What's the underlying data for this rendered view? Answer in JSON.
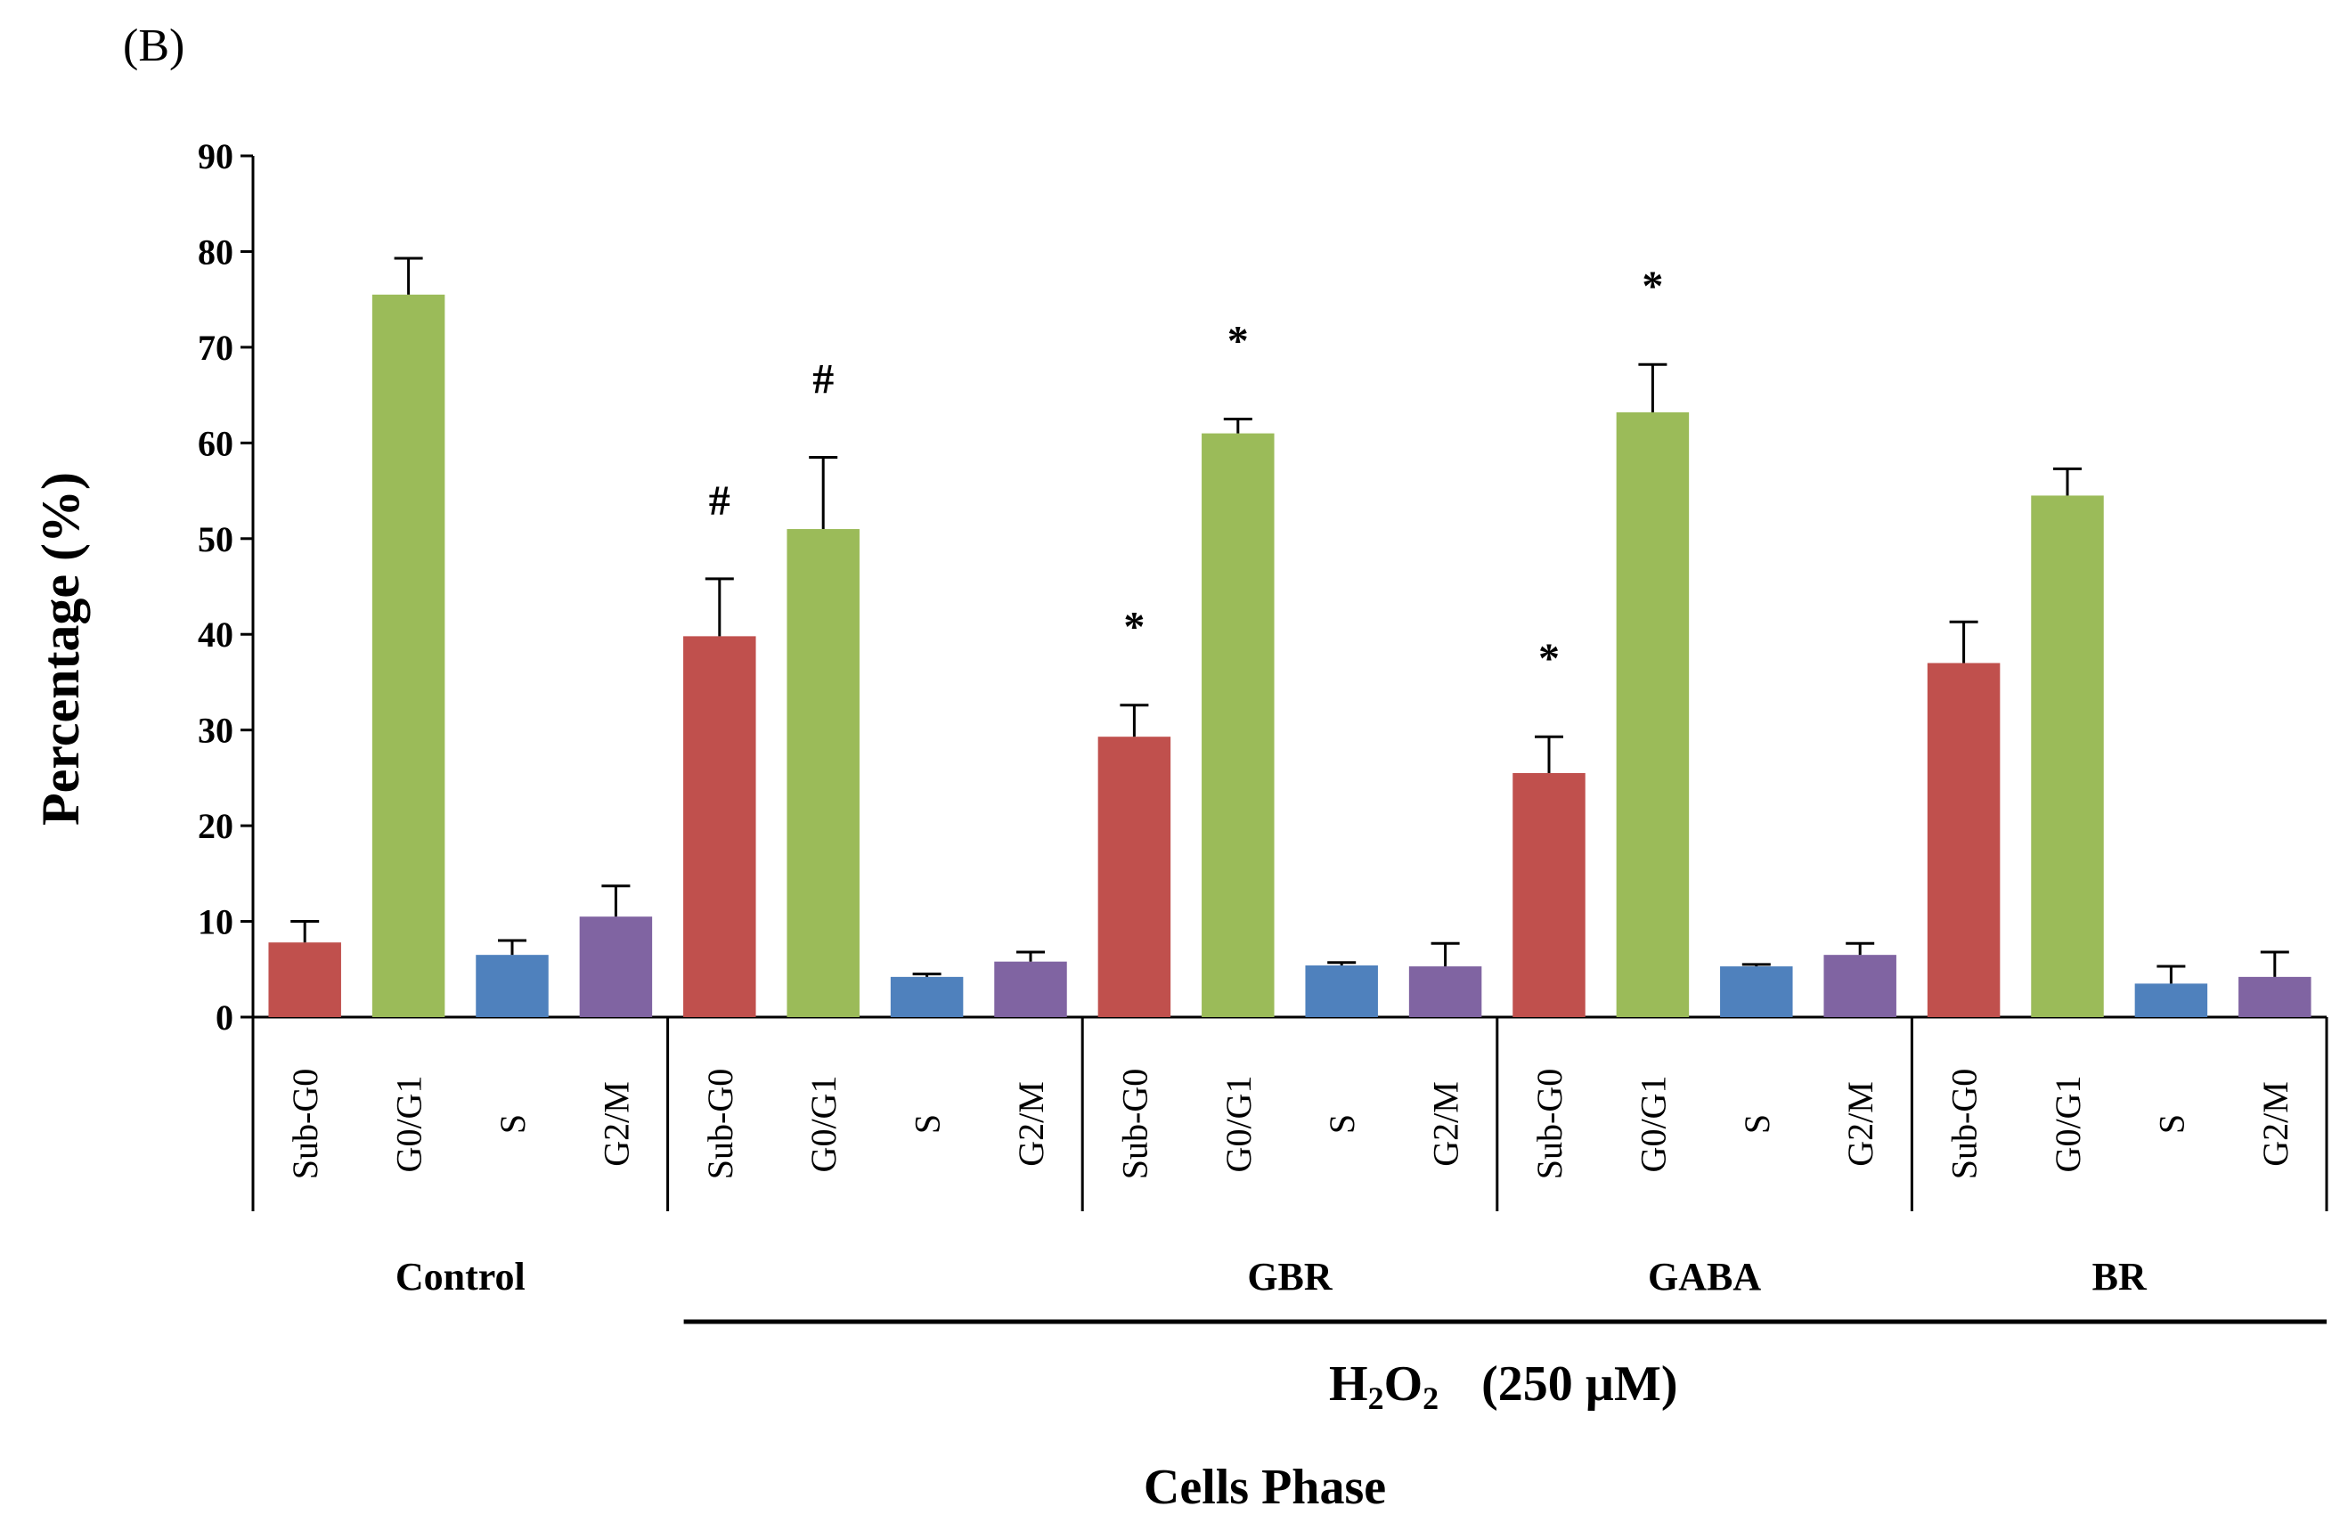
{
  "chart_data": {
    "type": "bar",
    "panel_label": "(B)",
    "ylabel": "Percentage (%)",
    "xlabel": "Cells Phase",
    "ylim": [
      0,
      90
    ],
    "yticks": [
      "0",
      "10",
      "20",
      "30",
      "40",
      "50",
      "60",
      "70",
      "80",
      "90"
    ],
    "treatment_label": {
      "main": "H",
      "sub1": "2",
      "mid": "O",
      "sub2": "2",
      "dose": "(250 µM)"
    },
    "phases": [
      "Sub-G0",
      "G0/G1",
      "S",
      "G2/M"
    ],
    "colors": {
      "Sub-G0": "#c0504d",
      "G0/G1": "#9bbb59",
      "S": "#4f81bd",
      "G2/M": "#8064a2"
    },
    "groups": [
      {
        "name": "Control",
        "label": "Control",
        "values": [
          7.8,
          75.5,
          6.5,
          10.5
        ],
        "errors": [
          2.2,
          3.8,
          1.5,
          3.2
        ],
        "sig": [
          "",
          "",
          "",
          ""
        ]
      },
      {
        "name": "H2O2",
        "label": "",
        "values": [
          39.8,
          51.0,
          4.2,
          5.8
        ],
        "errors": [
          6.0,
          7.5,
          0.3,
          1.0
        ],
        "sig": [
          "#",
          "#",
          "",
          ""
        ]
      },
      {
        "name": "GBR",
        "label": "GBR",
        "values": [
          29.3,
          61.0,
          5.4,
          5.3
        ],
        "errors": [
          3.3,
          1.5,
          0.3,
          2.4
        ],
        "sig": [
          "*",
          "*",
          "",
          ""
        ]
      },
      {
        "name": "GABA",
        "label": "GABA",
        "values": [
          25.5,
          63.2,
          5.3,
          6.5
        ],
        "errors": [
          3.8,
          5.0,
          0.2,
          1.2
        ],
        "sig": [
          "*",
          "*",
          "",
          ""
        ]
      },
      {
        "name": "BR",
        "label": "BR",
        "values": [
          37.0,
          54.5,
          3.5,
          4.2
        ],
        "errors": [
          4.3,
          2.8,
          1.8,
          2.6
        ],
        "sig": [
          "",
          "",
          "",
          ""
        ]
      }
    ]
  }
}
